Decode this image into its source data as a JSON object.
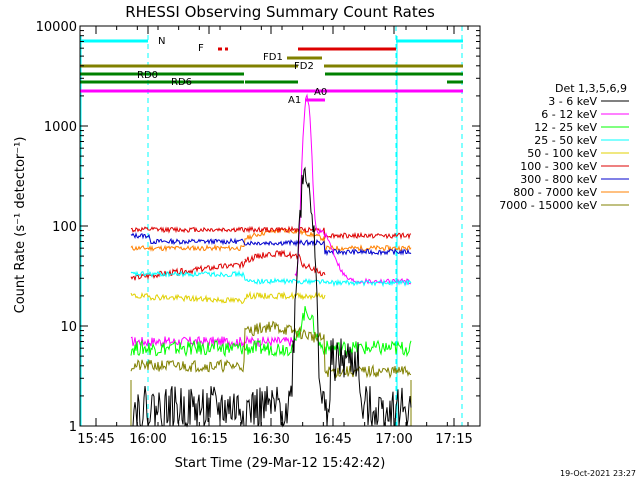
{
  "chart_data": {
    "type": "line",
    "title": "RHESSI Observing Summary Count Rates",
    "xlabel": "Start Time (29-Mar-12 15:42:42)",
    "ylabel": "Count Rate (s⁻¹ detector⁻¹)",
    "yscale": "log",
    "ylim": [
      1,
      10000
    ],
    "xlim_minutes": [
      0,
      100
    ],
    "x_ticks": [
      "15:45",
      "16:00",
      "16:15",
      "16:30",
      "16:45",
      "17:00",
      "17:15"
    ],
    "y_ticks": [
      "1",
      "10",
      "100",
      "1000",
      "10000"
    ],
    "legend_title": "Det 1,3,5,6,9",
    "legend_position": "right",
    "timestamp": "19-Oct-2021 23:27",
    "series": [
      {
        "name": "3 - 6 keV",
        "color": "#000000"
      },
      {
        "name": "6 - 12 keV",
        "color": "#ff00ff"
      },
      {
        "name": "12 - 25 keV",
        "color": "#00ff00"
      },
      {
        "name": "25 - 50 keV",
        "color": "#00ffff"
      },
      {
        "name": "50 - 100 keV",
        "color": "#e0d000"
      },
      {
        "name": "100 - 300 keV",
        "color": "#dd0000"
      },
      {
        "name": "300 - 800 keV",
        "color": "#0000cc"
      },
      {
        "name": "800 - 7000 keV",
        "color": "#ff8000"
      },
      {
        "name": "7000 - 15000 keV",
        "color": "#808000"
      }
    ],
    "segments": [
      {
        "label": "N",
        "color": "#00ffff",
        "y": 7000,
        "ranges": [
          [
            0,
            17
          ],
          [
            78,
            94
          ]
        ]
      },
      {
        "label": "F",
        "color": "#dd0000",
        "y": 5700,
        "ranges": [
          [
            34.5,
            36.5
          ]
        ]
      },
      {
        "label": "",
        "color": "#dd0000",
        "y": 5700,
        "ranges": [
          [
            54,
            78
          ]
        ]
      },
      {
        "label": "FD1",
        "color": "#808000",
        "y": 4700,
        "ranges": [
          [
            51,
            61
          ]
        ]
      },
      {
        "label": "FD2",
        "color": "#808000",
        "y": 4000,
        "ranges": [
          [
            0,
            59
          ],
          [
            61,
            100
          ]
        ]
      },
      {
        "label": "RD0",
        "color": "#008000",
        "y": 3200,
        "ranges": [
          [
            0,
            40
          ],
          [
            61,
            100
          ]
        ]
      },
      {
        "label": "RD6",
        "color": "#008000",
        "y": 2700,
        "ranges": [
          [
            0,
            40
          ],
          [
            41,
            58
          ],
          [
            91,
            100
          ]
        ]
      },
      {
        "label": "A0",
        "color": "#ff00ff",
        "y": 2200,
        "ranges": [
          [
            0,
            100
          ]
        ]
      },
      {
        "label": "A1",
        "color": "#ff00ff",
        "y": 1800,
        "ranges": [
          [
            57,
            61
          ]
        ]
      }
    ],
    "dashed_markers_minutes": [
      17,
      78,
      94
    ],
    "solid_markers_minutes": [
      0.5,
      92
    ]
  }
}
